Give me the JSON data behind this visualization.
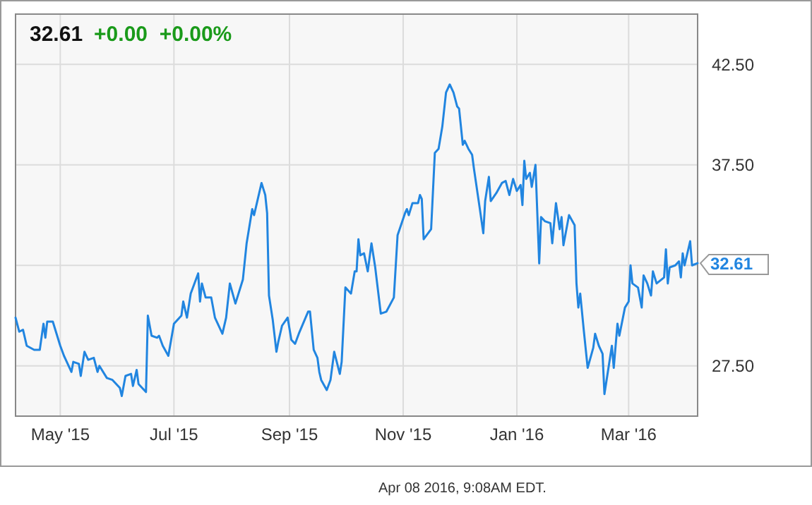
{
  "chart_data": {
    "type": "line",
    "title": "32.61",
    "subtitle": "+0.00  +0.00%",
    "annotations": [
      {
        "text": "32.61",
        "x": "2016-04-07",
        "y": 32.61
      },
      "Apr 08 2016, 9:08AM EDT."
    ],
    "xlim": [
      "2015-04-07",
      "2016-04-07"
    ],
    "xticks": [
      {
        "value": "2015-05-01",
        "label": "May '15"
      },
      {
        "value": "2015-07-01",
        "label": "Jul '15"
      },
      {
        "value": "2015-09-01",
        "label": "Sep '15"
      },
      {
        "value": "2015-11-01",
        "label": "Nov '15"
      },
      {
        "value": "2016-01-01",
        "label": "Jan '16"
      },
      {
        "value": "2016-03-01",
        "label": "Mar '16"
      }
    ],
    "ylim": [
      25,
      45
    ],
    "yticks": [
      {
        "value": 27.5,
        "label": "27.50"
      },
      {
        "value": 32.5,
        "label": null
      },
      {
        "value": 37.5,
        "label": "37.50"
      },
      {
        "value": 42.5,
        "label": "42.50"
      }
    ],
    "grid": true,
    "marker": "none",
    "line_style": "solid",
    "series": [
      {
        "color": "#2185e0",
        "x": [
          "2015-04-07",
          "2015-04-09",
          "2015-04-11",
          "2015-04-13",
          "2015-04-17",
          "2015-04-20",
          "2015-04-22",
          "2015-04-23",
          "2015-04-24",
          "2015-04-27",
          "2015-05-01",
          "2015-05-03",
          "2015-05-07",
          "2015-05-08",
          "2015-05-11",
          "2015-05-12",
          "2015-05-14",
          "2015-05-16",
          "2015-05-19",
          "2015-05-21",
          "2015-05-22",
          "2015-05-26",
          "2015-05-29",
          "2015-06-02",
          "2015-06-03",
          "2015-06-05",
          "2015-06-08",
          "2015-06-09",
          "2015-06-11",
          "2015-06-12",
          "2015-06-16",
          "2015-06-17",
          "2015-06-19",
          "2015-06-22",
          "2015-06-23",
          "2015-06-25",
          "2015-06-28",
          "2015-07-01",
          "2015-07-05",
          "2015-07-06",
          "2015-07-08",
          "2015-07-10",
          "2015-07-14",
          "2015-07-15",
          "2015-07-16",
          "2015-07-18",
          "2015-07-21",
          "2015-07-23",
          "2015-07-27",
          "2015-07-29",
          "2015-07-31",
          "2015-08-03",
          "2015-08-07",
          "2015-08-09",
          "2015-08-12",
          "2015-08-13",
          "2015-08-14",
          "2015-08-17",
          "2015-08-19",
          "2015-08-20",
          "2015-08-21",
          "2015-08-23",
          "2015-08-25",
          "2015-08-26",
          "2015-08-28",
          "2015-08-31",
          "2015-09-02",
          "2015-09-04",
          "2015-09-06",
          "2015-09-11",
          "2015-09-12",
          "2015-09-14",
          "2015-09-16",
          "2015-09-17",
          "2015-09-18",
          "2015-09-21",
          "2015-09-23",
          "2015-09-25",
          "2015-09-28",
          "2015-09-29",
          "2015-10-01",
          "2015-10-04",
          "2015-10-06",
          "2015-10-07",
          "2015-10-08",
          "2015-10-09",
          "2015-10-11",
          "2015-10-13",
          "2015-10-15",
          "2015-10-17",
          "2015-10-20",
          "2015-10-23",
          "2015-10-27",
          "2015-10-29",
          "2015-11-02",
          "2015-11-03",
          "2015-11-04",
          "2015-11-06",
          "2015-11-09",
          "2015-11-10",
          "2015-11-11",
          "2015-11-12",
          "2015-11-16",
          "2015-11-18",
          "2015-11-20",
          "2015-11-22",
          "2015-11-24",
          "2015-11-26",
          "2015-11-28",
          "2015-11-30",
          "2015-12-01",
          "2015-12-03",
          "2015-12-04",
          "2015-12-06",
          "2015-12-08",
          "2015-12-09",
          "2015-12-12",
          "2015-12-14",
          "2015-12-15",
          "2015-12-17",
          "2015-12-18",
          "2015-12-21",
          "2015-12-24",
          "2015-12-26",
          "2015-12-28",
          "2015-12-30",
          "2016-01-01",
          "2016-01-03",
          "2016-01-04",
          "2016-01-05",
          "2016-01-06",
          "2016-01-08",
          "2016-01-09",
          "2016-01-11",
          "2016-01-13",
          "2016-01-14",
          "2016-01-16",
          "2016-01-19",
          "2016-01-20",
          "2016-01-22",
          "2016-01-24",
          "2016-01-25",
          "2016-01-26",
          "2016-01-29",
          "2016-02-01",
          "2016-02-02",
          "2016-02-03",
          "2016-02-04",
          "2016-02-06",
          "2016-02-08",
          "2016-02-11",
          "2016-02-12",
          "2016-02-14",
          "2016-02-16",
          "2016-02-17",
          "2016-02-21",
          "2016-02-22",
          "2016-02-24",
          "2016-02-25",
          "2016-02-28",
          "2016-03-01",
          "2016-03-02",
          "2016-03-03",
          "2016-03-06",
          "2016-03-08",
          "2016-03-09",
          "2016-03-11",
          "2016-03-13",
          "2016-03-14",
          "2016-03-16",
          "2016-03-20",
          "2016-03-21",
          "2016-03-22",
          "2016-03-23",
          "2016-03-26",
          "2016-03-28",
          "2016-03-29",
          "2016-03-30",
          "2016-03-31",
          "2016-04-03",
          "2016-04-04",
          "2016-04-07"
        ],
        "values": [
          29.9,
          29.2,
          29.3,
          28.5,
          28.3,
          28.3,
          29.6,
          28.9,
          29.7,
          29.7,
          28.5,
          28.0,
          27.2,
          27.7,
          27.6,
          27.0,
          28.2,
          27.8,
          27.9,
          27.2,
          27.5,
          26.9,
          26.8,
          26.4,
          26.0,
          27.0,
          27.1,
          26.5,
          27.3,
          26.6,
          26.2,
          30.0,
          29.0,
          28.9,
          29.0,
          28.5,
          28.0,
          29.6,
          30.0,
          30.7,
          29.9,
          31.1,
          32.1,
          30.7,
          31.6,
          30.9,
          30.9,
          29.9,
          29.1,
          29.9,
          31.6,
          30.6,
          31.8,
          33.6,
          35.3,
          35.0,
          35.4,
          36.6,
          36.0,
          35.1,
          31.0,
          29.8,
          28.2,
          28.7,
          29.5,
          29.9,
          28.8,
          28.6,
          29.1,
          30.2,
          30.2,
          28.3,
          27.9,
          27.2,
          26.8,
          26.3,
          26.8,
          28.2,
          27.1,
          27.7,
          31.4,
          31.1,
          32.2,
          32.2,
          33.8,
          33.0,
          33.1,
          32.2,
          33.6,
          32.4,
          30.1,
          30.2,
          30.9,
          34.0,
          35.1,
          35.3,
          35.0,
          35.6,
          35.6,
          36.0,
          35.8,
          33.8,
          34.3,
          38.1,
          38.3,
          39.4,
          41.1,
          41.5,
          41.1,
          40.4,
          40.3,
          38.5,
          38.7,
          38.3,
          38.0,
          37.3,
          35.4,
          34.1,
          35.7,
          36.9,
          35.7,
          36.1,
          36.6,
          36.7,
          36.0,
          36.8,
          36.2,
          36.5,
          35.5,
          37.7,
          36.8,
          37.1,
          36.4,
          37.5,
          32.6,
          34.9,
          34.7,
          34.6,
          33.6,
          35.6,
          34.3,
          34.9,
          33.5,
          35.0,
          34.5,
          31.6,
          30.4,
          31.1,
          29.2,
          27.4,
          28.4,
          29.1,
          28.5,
          28.1,
          26.1,
          28.5,
          27.4,
          29.6,
          29.0,
          30.4,
          30.7,
          32.5,
          31.6,
          31.4,
          30.4,
          32.0,
          31.6,
          31.0,
          32.2,
          31.6,
          31.9,
          33.3,
          31.6,
          32.4,
          32.5,
          32.7,
          31.9,
          33.1,
          32.5,
          33.7,
          32.5,
          32.61
        ]
      }
    ]
  }
}
